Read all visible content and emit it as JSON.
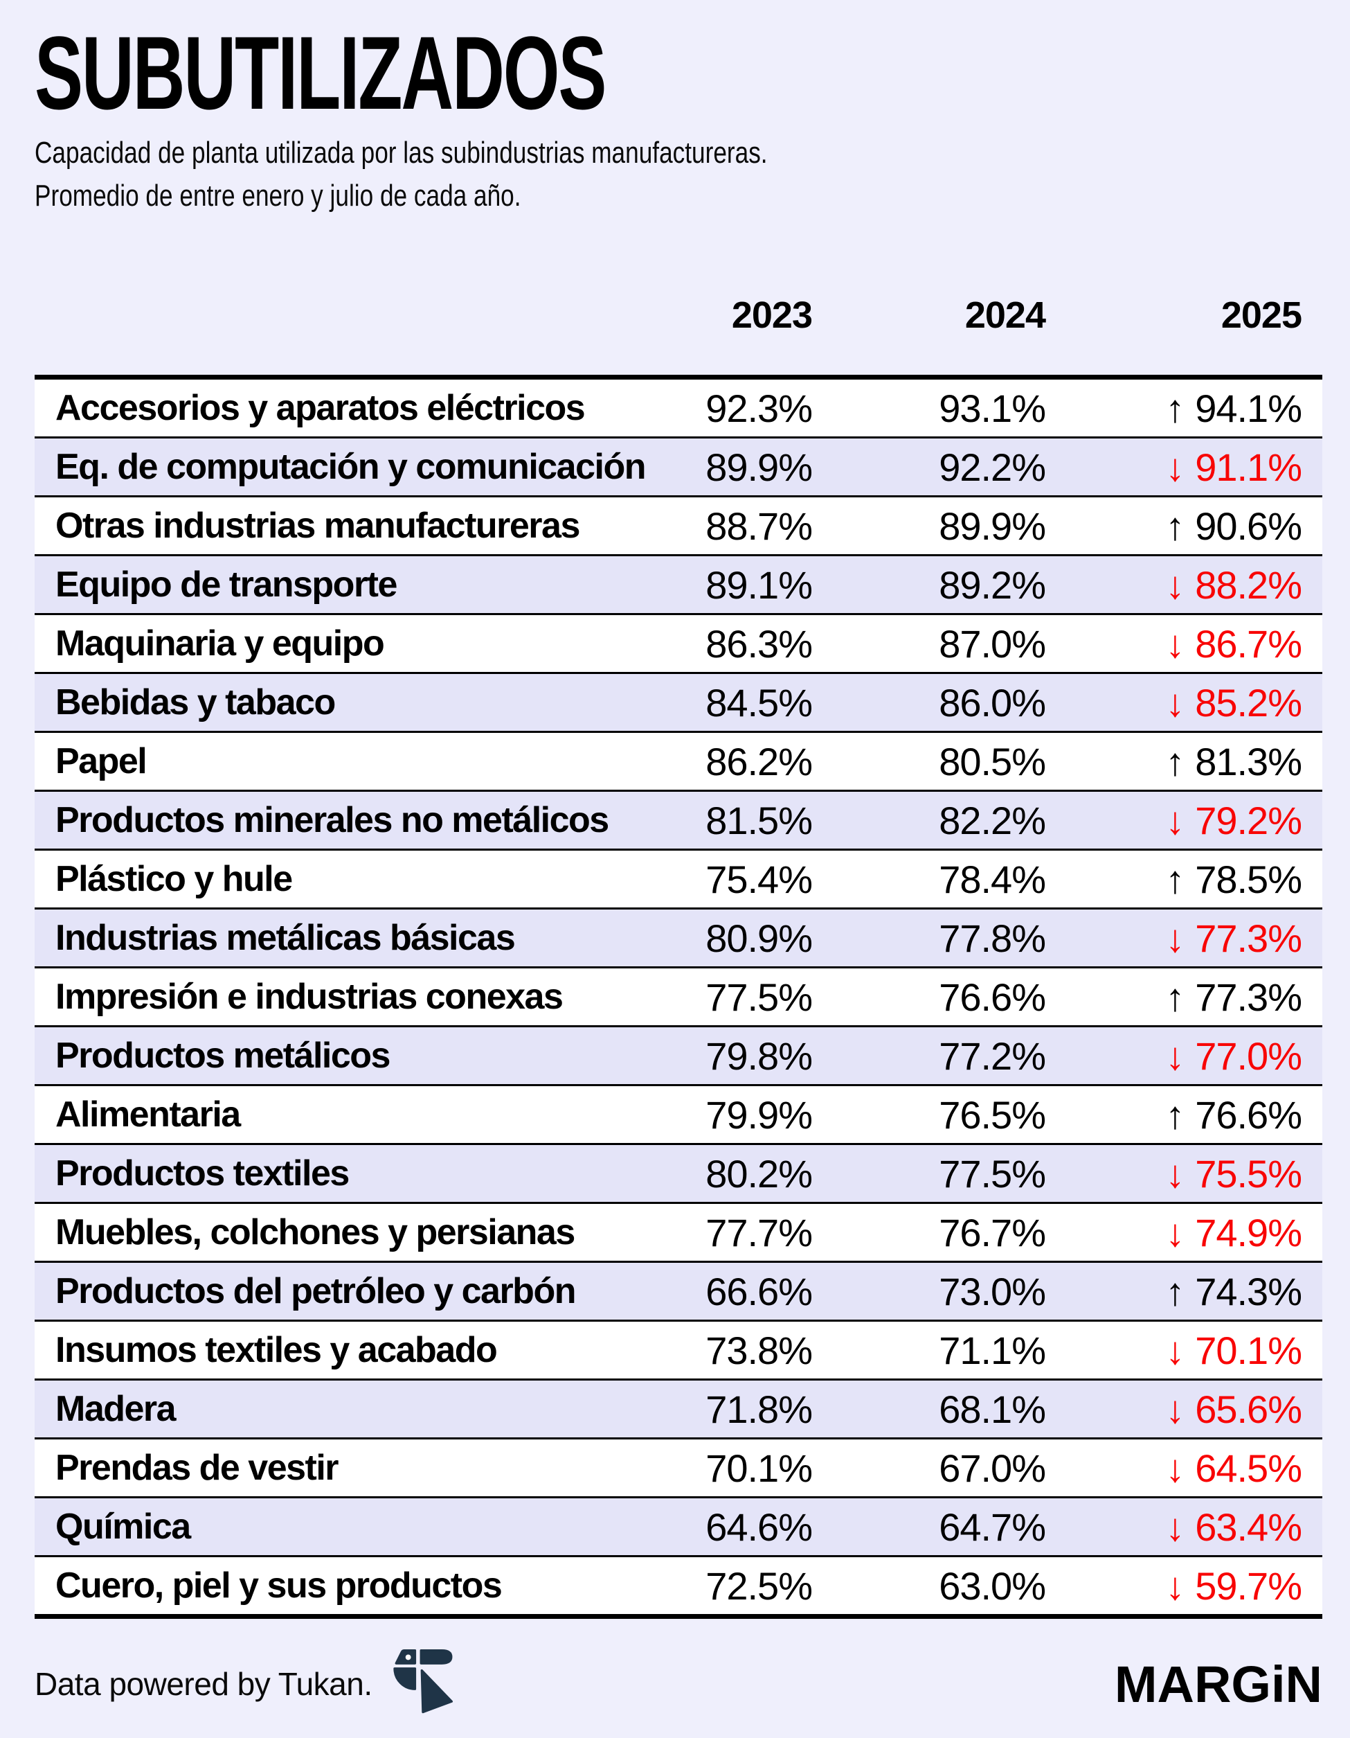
{
  "page": {
    "background": "#EFEFFC"
  },
  "header": {
    "title": "SUBUTILIZADOS",
    "subtitle_line1": "Capacidad de planta utilizada por las subindustrias manufactureras.",
    "subtitle_line2": "Promedio de entre enero y julio de cada año."
  },
  "table": {
    "year_columns": [
      "2023",
      "2024",
      "2025"
    ],
    "colors": {
      "decrease_text": "#F80505",
      "increase_text": "#000000",
      "row_background": "#FFFFFF",
      "row_alt_background": "#E4E4F8",
      "border": "#000000"
    },
    "rows": [
      {
        "label": "Accesorios y aparatos eléctricos",
        "y2023": "92.3%",
        "y2024": "93.1%",
        "y2025": "94.1%",
        "arrow": "↑",
        "direction": "up"
      },
      {
        "label": "Eq. de computación y comunicación",
        "y2023": "89.9%",
        "y2024": "92.2%",
        "y2025": "91.1%",
        "arrow": "↓",
        "direction": "down"
      },
      {
        "label": "Otras industrias manufactureras",
        "y2023": "88.7%",
        "y2024": "89.9%",
        "y2025": "90.6%",
        "arrow": "↑",
        "direction": "up"
      },
      {
        "label": "Equipo de transporte",
        "y2023": "89.1%",
        "y2024": "89.2%",
        "y2025": "88.2%",
        "arrow": "↓",
        "direction": "down"
      },
      {
        "label": "Maquinaria y equipo",
        "y2023": "86.3%",
        "y2024": "87.0%",
        "y2025": "86.7%",
        "arrow": "↓",
        "direction": "down"
      },
      {
        "label": "Bebidas y tabaco",
        "y2023": "84.5%",
        "y2024": "86.0%",
        "y2025": "85.2%",
        "arrow": "↓",
        "direction": "down"
      },
      {
        "label": "Papel",
        "y2023": "86.2%",
        "y2024": "80.5%",
        "y2025": "81.3%",
        "arrow": "↑",
        "direction": "up"
      },
      {
        "label": "Productos minerales no metálicos",
        "y2023": "81.5%",
        "y2024": "82.2%",
        "y2025": "79.2%",
        "arrow": "↓",
        "direction": "down"
      },
      {
        "label": "Plástico y hule",
        "y2023": "75.4%",
        "y2024": "78.4%",
        "y2025": "78.5%",
        "arrow": "↑",
        "direction": "up"
      },
      {
        "label": "Industrias metálicas básicas",
        "y2023": "80.9%",
        "y2024": "77.8%",
        "y2025": "77.3%",
        "arrow": "↓",
        "direction": "down"
      },
      {
        "label": "Impresión e industrias conexas",
        "y2023": "77.5%",
        "y2024": "76.6%",
        "y2025": "77.3%",
        "arrow": "↑",
        "direction": "up"
      },
      {
        "label": "Productos metálicos",
        "y2023": "79.8%",
        "y2024": "77.2%",
        "y2025": "77.0%",
        "arrow": "↓",
        "direction": "down"
      },
      {
        "label": "Alimentaria",
        "y2023": "79.9%",
        "y2024": "76.5%",
        "y2025": "76.6%",
        "arrow": "↑",
        "direction": "up"
      },
      {
        "label": "Productos textiles",
        "y2023": "80.2%",
        "y2024": "77.5%",
        "y2025": "75.5%",
        "arrow": "↓",
        "direction": "down"
      },
      {
        "label": "Muebles, colchones y persianas",
        "y2023": "77.7%",
        "y2024": "76.7%",
        "y2025": "74.9%",
        "arrow": "↓",
        "direction": "down"
      },
      {
        "label": "Productos del petróleo y carbón",
        "y2023": "66.6%",
        "y2024": "73.0%",
        "y2025": "74.3%",
        "arrow": "↑",
        "direction": "up"
      },
      {
        "label": "Insumos textiles y acabado",
        "y2023": "73.8%",
        "y2024": "71.1%",
        "y2025": "70.1%",
        "arrow": "↓",
        "direction": "down"
      },
      {
        "label": "Madera",
        "y2023": "71.8%",
        "y2024": "68.1%",
        "y2025": "65.6%",
        "arrow": "↓",
        "direction": "down"
      },
      {
        "label": "Prendas de vestir",
        "y2023": "70.1%",
        "y2024": "67.0%",
        "y2025": "64.5%",
        "arrow": "↓",
        "direction": "down"
      },
      {
        "label": "Química",
        "y2023": "64.6%",
        "y2024": "64.7%",
        "y2025": "63.4%",
        "arrow": "↓",
        "direction": "down"
      },
      {
        "label": "Cuero, piel y sus productos",
        "y2023": "72.5%",
        "y2024": "63.0%",
        "y2025": "59.7%",
        "arrow": "↓",
        "direction": "down"
      }
    ]
  },
  "footer": {
    "credit": "Data powered by Tukan.",
    "brand": "MARGiN",
    "tukan_logo_color": "#1F3447"
  },
  "chart_data": {
    "type": "table",
    "title": "SUBUTILIZADOS",
    "subtitle": "Capacidad de planta utilizada por las subindustrias manufactureras. Promedio de entre enero y julio de cada año.",
    "categories": [
      "Accesorios y aparatos eléctricos",
      "Eq. de computación y comunicación",
      "Otras industrias manufactureras",
      "Equipo de transporte",
      "Maquinaria y equipo",
      "Bebidas y tabaco",
      "Papel",
      "Productos minerales no metálicos",
      "Plástico y hule",
      "Industrias metálicas básicas",
      "Impresión e industrias conexas",
      "Productos metálicos",
      "Alimentaria",
      "Productos textiles",
      "Muebles, colchones y persianas",
      "Productos del petróleo y carbón",
      "Insumos textiles y acabado",
      "Madera",
      "Prendas de vestir",
      "Química",
      "Cuero, piel y sus productos"
    ],
    "series": [
      {
        "name": "2023",
        "values": [
          92.3,
          89.9,
          88.7,
          89.1,
          86.3,
          84.5,
          86.2,
          81.5,
          75.4,
          80.9,
          77.5,
          79.8,
          79.9,
          80.2,
          77.7,
          66.6,
          73.8,
          71.8,
          70.1,
          64.6,
          72.5
        ]
      },
      {
        "name": "2024",
        "values": [
          93.1,
          92.2,
          89.9,
          89.2,
          87.0,
          86.0,
          80.5,
          82.2,
          78.4,
          77.8,
          76.6,
          77.2,
          76.5,
          77.5,
          76.7,
          73.0,
          71.1,
          68.1,
          67.0,
          64.7,
          63.0
        ]
      },
      {
        "name": "2025",
        "values": [
          94.1,
          91.1,
          90.6,
          88.2,
          86.7,
          85.2,
          81.3,
          79.2,
          78.5,
          77.3,
          77.3,
          77.0,
          76.6,
          75.5,
          74.9,
          74.3,
          70.1,
          65.6,
          64.5,
          63.4,
          59.7
        ]
      }
    ],
    "change_direction_2025": [
      "up",
      "down",
      "up",
      "down",
      "down",
      "down",
      "up",
      "down",
      "up",
      "down",
      "up",
      "down",
      "up",
      "down",
      "down",
      "up",
      "down",
      "down",
      "down",
      "down",
      "down"
    ],
    "unit": "%"
  }
}
